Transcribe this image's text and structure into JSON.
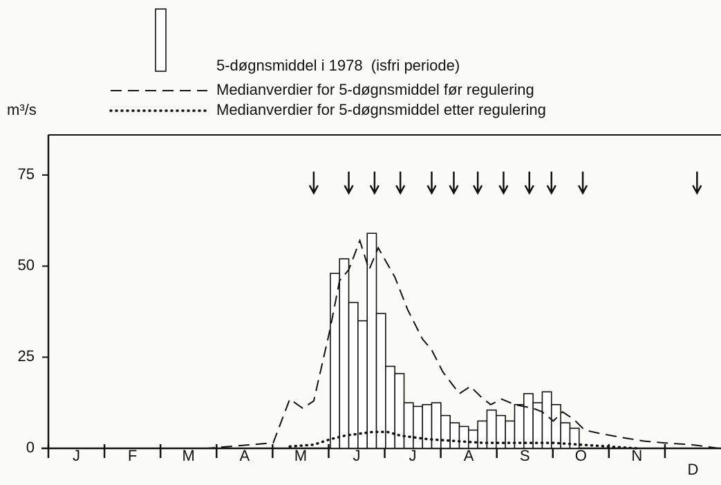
{
  "chart_data": {
    "type": "combo",
    "y_label": "m³/s",
    "months": [
      "J",
      "F",
      "M",
      "A",
      "M",
      "J",
      "J",
      "A",
      "S",
      "O",
      "N",
      "D"
    ],
    "xlim": [
      0,
      365
    ],
    "ylim": [
      0,
      86
    ],
    "yticks": [
      0,
      25,
      50,
      75
    ],
    "markers_x": [
      144,
      163,
      177,
      191,
      208,
      220,
      233,
      247,
      261,
      273,
      290,
      352
    ],
    "series": [
      {
        "name": "5-døgnsmiddel i 1978  (isfri periode)",
        "type": "bar",
        "color": "#111111",
        "x": [
          153,
          158,
          163,
          168,
          173,
          178,
          183,
          188,
          193,
          198,
          203,
          208,
          213,
          218,
          223,
          228,
          233,
          238,
          243,
          248,
          253,
          258,
          263,
          268,
          273,
          278,
          283
        ],
        "values": [
          48,
          52,
          40,
          35,
          59,
          37,
          22.5,
          20.5,
          12.5,
          11.5,
          12,
          12.5,
          9,
          7,
          6,
          5,
          7.5,
          10.5,
          9,
          7.5,
          12,
          15,
          12.5,
          15.5,
          12,
          7,
          5.5
        ]
      },
      {
        "name": "Medianverdier for 5-døgnsmiddel før regulering",
        "type": "line",
        "dash": "dashed",
        "color": "#111111",
        "x": [
          0,
          86,
          98,
          122,
          131,
          138,
          144,
          153,
          158,
          163,
          169,
          174,
          179,
          188,
          195,
          203,
          208,
          214,
          223,
          229,
          235,
          240,
          246,
          253,
          263,
          268,
          274,
          279,
          285,
          291,
          300,
          311,
          323,
          334,
          349,
          364
        ],
        "values": [
          0,
          0,
          0.5,
          1.5,
          13.5,
          11,
          13,
          33,
          46,
          49,
          57,
          49,
          55,
          47,
          38,
          30,
          27,
          21,
          15,
          17,
          14,
          12,
          13.5,
          12,
          11,
          10,
          7.5,
          10,
          8,
          5,
          4,
          3,
          2,
          1.5,
          1,
          0
        ]
      },
      {
        "name": "Medianverdier for 5-døgnsmiddel etter regulering",
        "type": "line",
        "dash": "dotted",
        "color": "#111111",
        "x": [
          131,
          144,
          153,
          161,
          176,
          184,
          191,
          206,
          221,
          236,
          259,
          274,
          289,
          304,
          319
        ],
        "values": [
          0.5,
          1,
          2.5,
          3.5,
          4.5,
          4.5,
          3.5,
          2.5,
          2,
          1.5,
          1.5,
          1.5,
          1,
          0.5,
          0
        ]
      }
    ]
  }
}
